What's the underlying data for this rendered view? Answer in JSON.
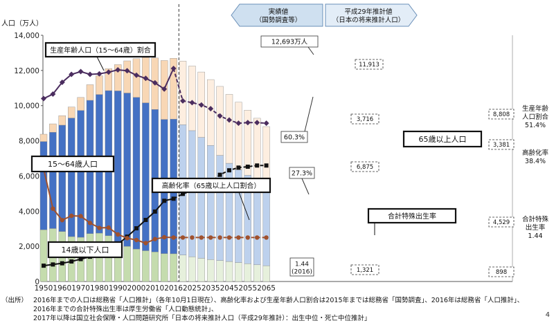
{
  "chart_data": {
    "type": "bar",
    "y_axis_label": "人口（万人）",
    "ylim": [
      0,
      14000
    ],
    "yticks": [
      "0",
      "2,000",
      "4,000",
      "6,000",
      "8,000",
      "10,000",
      "12,000",
      "14,000"
    ],
    "x_tick_labels": [
      "1950",
      "1960",
      "1970",
      "1980",
      "1990",
      "2000",
      "2010",
      "2016",
      "2025",
      "2035",
      "2045",
      "2055",
      "2065"
    ],
    "periods": {
      "actual": "実績値\n（国勢調査等）",
      "projection": "平成29年推計値\n（日本の将来推計人口）"
    },
    "categories": [
      "1950",
      "1955",
      "1960",
      "1965",
      "1970",
      "1975",
      "1980",
      "1985",
      "1990",
      "1995",
      "2000",
      "2005",
      "2010",
      "2015",
      "2016",
      "2020",
      "2025",
      "2030",
      "2035",
      "2040",
      "2045",
      "2050",
      "2055",
      "2060",
      "2065"
    ],
    "series": [
      {
        "name": "14歳以下人口",
        "values": [
          2943,
          3012,
          2843,
          2553,
          2515,
          2722,
          2751,
          2603,
          2249,
          2001,
          1847,
          1752,
          1680,
          1589,
          1578,
          1507,
          1407,
          1321,
          1246,
          1194,
          1138,
          1077,
          1012,
          951,
          898
        ]
      },
      {
        "name": "15〜64歳人口",
        "values": [
          5017,
          5473,
          6047,
          6744,
          7212,
          7581,
          7883,
          8251,
          8590,
          8716,
          8622,
          8409,
          8103,
          7629,
          7656,
          7406,
          7170,
          6875,
          6494,
          5978,
          5584,
          5275,
          5028,
          4793,
          4529
        ]
      },
      {
        "name": "65歳以上人口",
        "values": [
          416,
          479,
          540,
          624,
          739,
          887,
          1065,
          1247,
          1493,
          1828,
          2204,
          2576,
          2925,
          3347,
          3459,
          3619,
          3677,
          3716,
          3741,
          3921,
          3919,
          3841,
          3704,
          3540,
          3381
        ]
      },
      {
        "name": "生産年齢人口（15〜64歳）割合",
        "values": [
          49.6,
          51.2,
          55.4,
          58.2,
          59.2,
          58.2,
          58.4,
          59.0,
          59.8,
          59.5,
          57.9,
          56.8,
          55.2,
          53.0,
          60.3,
          59.1,
          58.5,
          57.7,
          56.4,
          53.9,
          52.5,
          51.4,
          51.6,
          51.6,
          51.4
        ]
      },
      {
        "name": "高齢化率（65歳以上人口割合）",
        "values": [
          4.9,
          5.3,
          5.7,
          6.3,
          7.1,
          7.9,
          9.1,
          10.3,
          12.1,
          14.6,
          17.4,
          20.2,
          23.0,
          26.6,
          27.3,
          28.9,
          30.0,
          31.2,
          32.8,
          35.3,
          36.8,
          37.7,
          38.0,
          38.4,
          38.4
        ]
      },
      {
        "name": "合計特殊出生率",
        "values": [
          3.65,
          2.37,
          2.0,
          2.14,
          2.13,
          1.91,
          1.75,
          1.76,
          1.54,
          1.42,
          1.36,
          1.26,
          1.39,
          1.45,
          1.44,
          1.44,
          1.44,
          1.44,
          1.44,
          1.44,
          1.44,
          1.44,
          1.44,
          1.44,
          1.44
        ]
      }
    ],
    "callouts": {
      "working_age_ratio": "生産年齢人口（15〜64歳）割合",
      "age_15_64": "15〜64歳人口",
      "aging_rate": "高齢化率（65歳以上人口割合）",
      "age_65_plus": "65歳以上人口",
      "tfr": "合計特殊出生率",
      "age_0_14": "14歳以下人口"
    },
    "annotations": {
      "total_2016": "12,693万人",
      "ratio_2016": "60.3%",
      "aging_2016": "27.3%",
      "tfr_2016": "1.44\n(2016)",
      "total_2030": "11,913",
      "old_2030": "3,716",
      "work_2030": "6,875",
      "child_2030": "1,321",
      "total_2065": "8,808",
      "old_2065": "3,381",
      "work_2065": "4,529",
      "child_2065": "898"
    },
    "right_labels": {
      "working_age_ratio": "生産年齢\n人口割合\n51.4%",
      "aging_rate": "高齢化率\n38.4%",
      "tfr": "合計特殊\n出生率\n1.44"
    },
    "colors": {
      "child": "#c5dcae",
      "child_proj": "#e6f0dc",
      "work": "#4471c4",
      "work_proj": "#bdd1ed",
      "old": "#f8d7b5",
      "old_proj": "#fdeee0",
      "ratio_line": "#4b2d5f",
      "aging_line": "#111111",
      "tfr_line": "#a0512d"
    }
  },
  "footer": {
    "source_label": "（出所）",
    "lines": [
      "2016年までの人口は総務省「人口推計」（各年10月1日現在）、高齢化率および生産年齢人口割合は2015年までは総務省「国勢調査」、2016年は総務省「人口推計」、",
      "2016年までの合計特殊出生率は厚生労働省「人口動態統計」、",
      "2017年以降は国立社会保障・人口問題研究所「日本の将来推計人口（平成29年推計）：出生中位・死亡中位推計」"
    ],
    "page_number": "4"
  }
}
